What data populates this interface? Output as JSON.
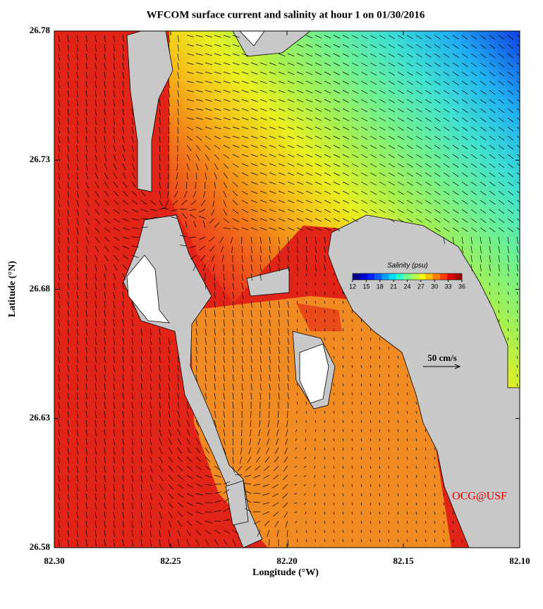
{
  "map": {
    "title": "WFCOM surface current and salinity at hour 1 on 01/30/2016",
    "xlabel": "Longitude (°W)",
    "ylabel": "Latitude (°N)",
    "xlim": [
      82.3,
      82.1
    ],
    "ylim": [
      26.58,
      26.78
    ],
    "xticks": [
      {
        "value": 82.3,
        "label": "82.30"
      },
      {
        "value": 82.25,
        "label": "82.25"
      },
      {
        "value": 82.2,
        "label": "82.20"
      },
      {
        "value": 82.15,
        "label": "82.15"
      },
      {
        "value": 82.1,
        "label": "82.10"
      }
    ],
    "yticks": [
      {
        "value": 26.58,
        "label": "26.58"
      },
      {
        "value": 26.63,
        "label": "26.63"
      },
      {
        "value": 26.68,
        "label": "26.68"
      },
      {
        "value": 26.73,
        "label": "26.73"
      },
      {
        "value": 26.78,
        "label": "26.78"
      }
    ],
    "colorbar": {
      "title": "Salinity (psu)",
      "lim": [
        12,
        36
      ],
      "ticks": [
        12,
        15,
        18,
        21,
        24,
        27,
        30,
        33,
        36
      ],
      "colors": [
        "#00008f",
        "#0000d0",
        "#0020ff",
        "#0060ff",
        "#00a0ff",
        "#00e0ff",
        "#30ffcf",
        "#70ff8f",
        "#b0ff50",
        "#f0ff10",
        "#ffc000",
        "#ff8000",
        "#ff4000",
        "#e00000",
        "#a00000"
      ]
    },
    "scale_label": "50 cm/s",
    "credit": "OCG@USF"
  }
}
